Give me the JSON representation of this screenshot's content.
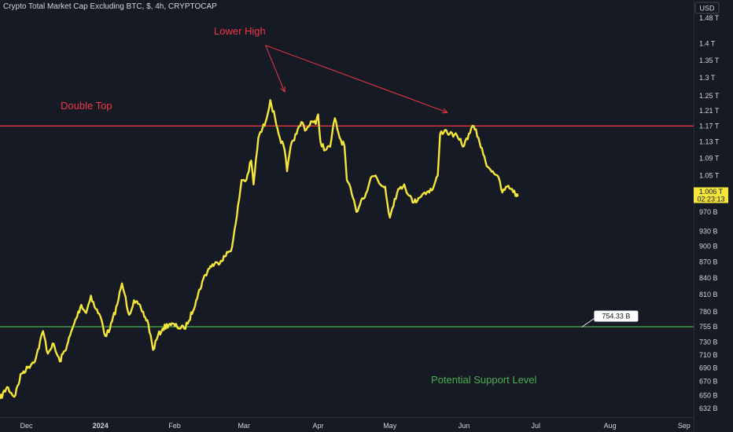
{
  "chart_data": {
    "type": "line",
    "title": "Crypto Total Market Cap Excluding BTC, $, 4h, CRYPTOCAP",
    "currency_button": "USD",
    "grid": false,
    "y_scale": "log",
    "ylim": [
      620,
      1540
    ],
    "y_ticks": [
      {
        "label": "1.48 T",
        "value": 1480
      },
      {
        "label": "1.4 T",
        "value": 1400
      },
      {
        "label": "1.35 T",
        "value": 1350
      },
      {
        "label": "1.3 T",
        "value": 1300
      },
      {
        "label": "1.25 T",
        "value": 1250
      },
      {
        "label": "1.21 T",
        "value": 1210
      },
      {
        "label": "1.17 T",
        "value": 1170
      },
      {
        "label": "1.13 T",
        "value": 1130
      },
      {
        "label": "1.09 T",
        "value": 1090
      },
      {
        "label": "1.05 T",
        "value": 1050
      },
      {
        "label": "970 B",
        "value": 970
      },
      {
        "label": "930 B",
        "value": 930
      },
      {
        "label": "900 B",
        "value": 900
      },
      {
        "label": "870 B",
        "value": 870
      },
      {
        "label": "840 B",
        "value": 840
      },
      {
        "label": "810 B",
        "value": 810
      },
      {
        "label": "780 B",
        "value": 780
      },
      {
        "label": "755 B",
        "value": 755
      },
      {
        "label": "730 B",
        "value": 730
      },
      {
        "label": "710 B",
        "value": 710
      },
      {
        "label": "690 B",
        "value": 690
      },
      {
        "label": "670 B",
        "value": 670
      },
      {
        "label": "650 B",
        "value": 650
      },
      {
        "label": "632 B",
        "value": 632
      }
    ],
    "x_ticks": [
      {
        "label": "Dec",
        "date": "2023-12-01",
        "bold": false
      },
      {
        "label": "2024",
        "date": "2024-01-01",
        "bold": true
      },
      {
        "label": "Feb",
        "date": "2024-02-01",
        "bold": false
      },
      {
        "label": "Mar",
        "date": "2024-03-01",
        "bold": false
      },
      {
        "label": "Apr",
        "date": "2024-04-01",
        "bold": false
      },
      {
        "label": "May",
        "date": "2024-05-01",
        "bold": false
      },
      {
        "label": "Jun",
        "date": "2024-06-01",
        "bold": false
      },
      {
        "label": "Jul",
        "date": "2024-07-01",
        "bold": false
      },
      {
        "label": "Aug",
        "date": "2024-08-01",
        "bold": false
      },
      {
        "label": "Sep",
        "date": "2024-09-01",
        "bold": false
      }
    ],
    "series": [
      {
        "color": "#f5e63b",
        "points": [
          [
            "2023-11-20",
            645
          ],
          [
            "2023-11-23",
            662
          ],
          [
            "2023-11-26",
            648
          ],
          [
            "2023-11-29",
            682
          ],
          [
            "2023-12-02",
            692
          ],
          [
            "2023-12-05",
            705
          ],
          [
            "2023-12-08",
            748
          ],
          [
            "2023-12-10",
            712
          ],
          [
            "2023-12-12",
            728
          ],
          [
            "2023-12-15",
            700
          ],
          [
            "2023-12-18",
            725
          ],
          [
            "2023-12-21",
            760
          ],
          [
            "2023-12-24",
            792
          ],
          [
            "2023-12-26",
            778
          ],
          [
            "2023-12-28",
            808
          ],
          [
            "2023-12-30",
            785
          ],
          [
            "2024-01-01",
            772
          ],
          [
            "2024-01-03",
            740
          ],
          [
            "2024-01-05",
            752
          ],
          [
            "2024-01-08",
            792
          ],
          [
            "2024-01-10",
            830
          ],
          [
            "2024-01-11",
            812
          ],
          [
            "2024-01-13",
            775
          ],
          [
            "2024-01-15",
            800
          ],
          [
            "2024-01-18",
            785
          ],
          [
            "2024-01-21",
            760
          ],
          [
            "2024-01-23",
            718
          ],
          [
            "2024-01-25",
            740
          ],
          [
            "2024-01-27",
            752
          ],
          [
            "2024-01-30",
            760
          ],
          [
            "2024-02-02",
            755
          ],
          [
            "2024-02-05",
            752
          ],
          [
            "2024-02-07",
            765
          ],
          [
            "2024-02-10",
            800
          ],
          [
            "2024-02-13",
            838
          ],
          [
            "2024-02-16",
            862
          ],
          [
            "2024-02-19",
            868
          ],
          [
            "2024-02-22",
            880
          ],
          [
            "2024-02-25",
            898
          ],
          [
            "2024-02-27",
            960
          ],
          [
            "2024-02-29",
            1040
          ],
          [
            "2024-03-02",
            1040
          ],
          [
            "2024-03-04",
            1085
          ],
          [
            "2024-03-05",
            1030
          ],
          [
            "2024-03-07",
            1140
          ],
          [
            "2024-03-10",
            1180
          ],
          [
            "2024-03-12",
            1238
          ],
          [
            "2024-03-14",
            1190
          ],
          [
            "2024-03-16",
            1140
          ],
          [
            "2024-03-18",
            1110
          ],
          [
            "2024-03-19",
            1060
          ],
          [
            "2024-03-21",
            1130
          ],
          [
            "2024-03-23",
            1150
          ],
          [
            "2024-03-25",
            1180
          ],
          [
            "2024-03-27",
            1160
          ],
          [
            "2024-03-29",
            1182
          ],
          [
            "2024-03-31",
            1175
          ],
          [
            "2024-04-01",
            1200
          ],
          [
            "2024-04-02",
            1130
          ],
          [
            "2024-04-04",
            1110
          ],
          [
            "2024-04-06",
            1118
          ],
          [
            "2024-04-08",
            1190
          ],
          [
            "2024-04-10",
            1140
          ],
          [
            "2024-04-12",
            1120
          ],
          [
            "2024-04-13",
            1040
          ],
          [
            "2024-04-15",
            1010
          ],
          [
            "2024-04-17",
            970
          ],
          [
            "2024-04-19",
            995
          ],
          [
            "2024-04-21",
            1010
          ],
          [
            "2024-04-23",
            1045
          ],
          [
            "2024-04-25",
            1050
          ],
          [
            "2024-04-27",
            1030
          ],
          [
            "2024-04-29",
            1025
          ],
          [
            "2024-05-01",
            958
          ],
          [
            "2024-05-03",
            998
          ],
          [
            "2024-05-05",
            1020
          ],
          [
            "2024-05-07",
            1030
          ],
          [
            "2024-05-09",
            1005
          ],
          [
            "2024-05-11",
            990
          ],
          [
            "2024-05-13",
            1000
          ],
          [
            "2024-05-15",
            1010
          ],
          [
            "2024-05-17",
            1015
          ],
          [
            "2024-05-19",
            1020
          ],
          [
            "2024-05-21",
            1050
          ],
          [
            "2024-05-22",
            1150
          ],
          [
            "2024-05-24",
            1160
          ],
          [
            "2024-05-26",
            1150
          ],
          [
            "2024-05-28",
            1148
          ],
          [
            "2024-05-30",
            1135
          ],
          [
            "2024-06-01",
            1120
          ],
          [
            "2024-06-03",
            1150
          ],
          [
            "2024-06-05",
            1170
          ],
          [
            "2024-06-07",
            1140
          ],
          [
            "2024-06-09",
            1100
          ],
          [
            "2024-06-11",
            1070
          ],
          [
            "2024-06-13",
            1060
          ],
          [
            "2024-06-15",
            1050
          ],
          [
            "2024-06-17",
            1012
          ],
          [
            "2024-06-19",
            1025
          ],
          [
            "2024-06-21",
            1020
          ],
          [
            "2024-06-23",
            1006
          ]
        ]
      }
    ],
    "last_value": {
      "label": "1.006 T",
      "timer": "02:23:13",
      "value": 1006
    },
    "horizontal_lines": [
      {
        "name": "resistance",
        "value": 1170,
        "color": "#f23645"
      },
      {
        "name": "support",
        "value": 755,
        "color": "#4caf50"
      }
    ],
    "price_callout": {
      "label": "754.33 B",
      "value": 754.33,
      "date": "2024-07-28"
    },
    "annotations": {
      "double_top": {
        "text": "Double Top",
        "color": "#f23645"
      },
      "lower_high": {
        "text": "Lower High",
        "color": "#f23645"
      },
      "support": {
        "text": "Potential Support Level",
        "color": "#4caf50"
      }
    },
    "arrows": [
      {
        "from": [
          "2024-03-10",
          1395
        ],
        "to": [
          "2024-03-18",
          1260
        ]
      },
      {
        "from": [
          "2024-03-10",
          1395
        ],
        "to": [
          "2024-05-25",
          1205
        ]
      }
    ]
  }
}
